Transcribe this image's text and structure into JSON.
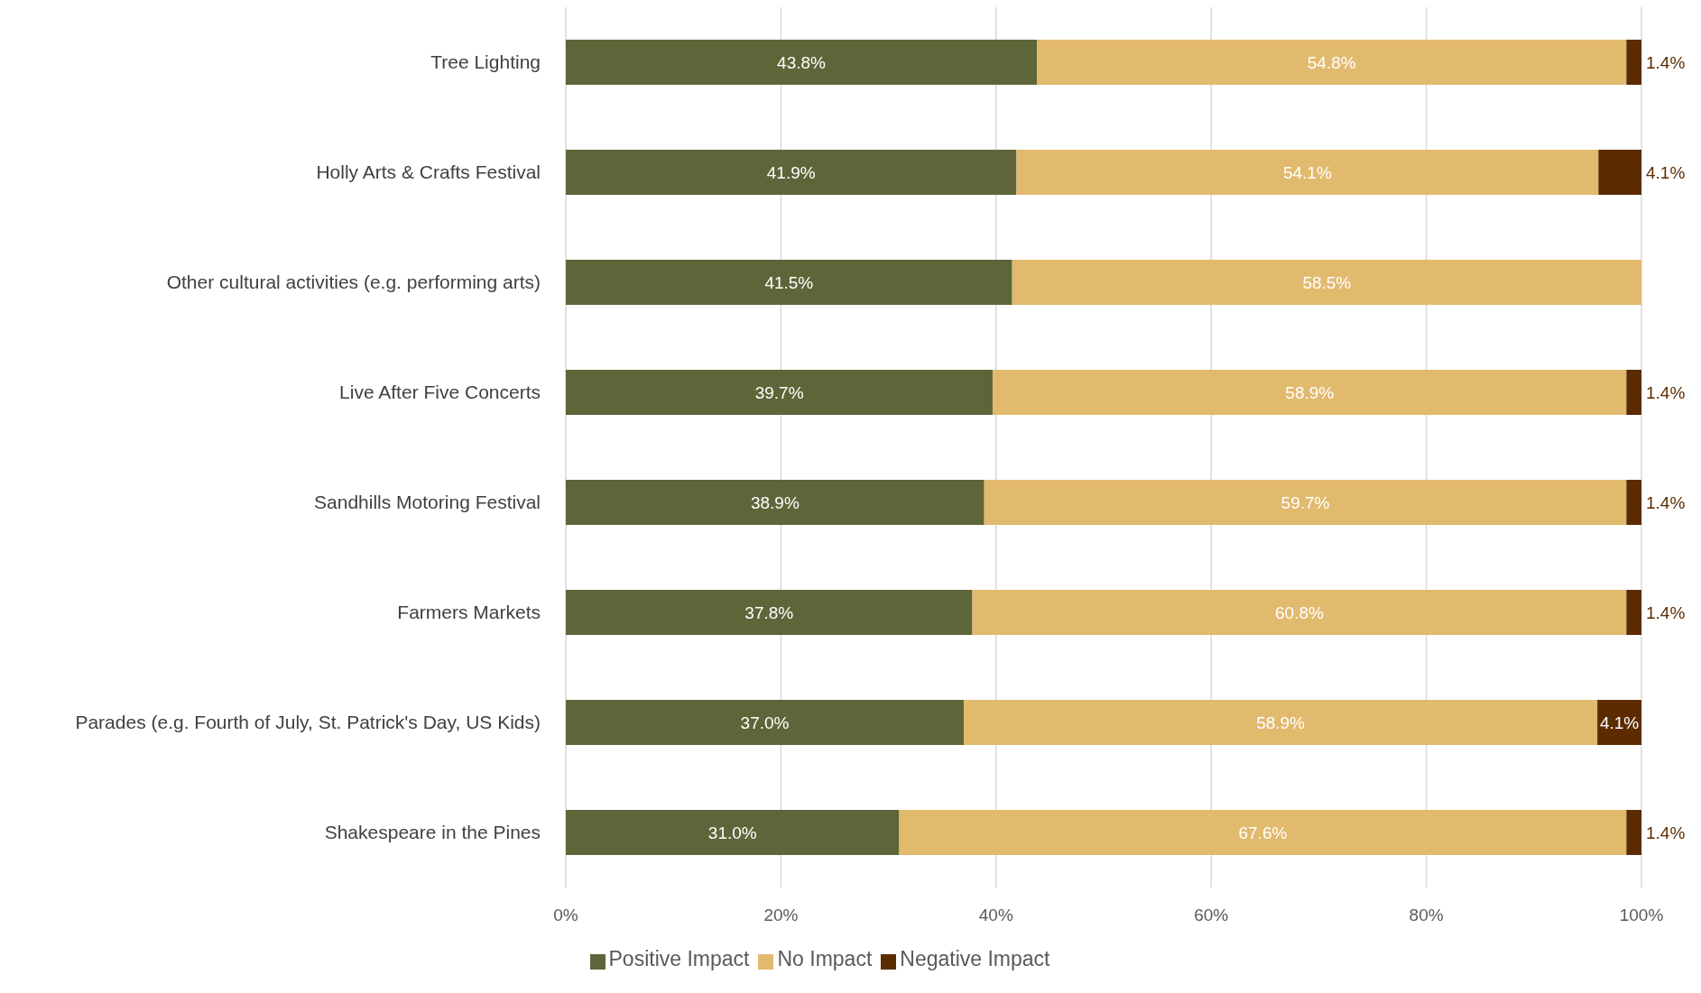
{
  "chart_data": {
    "type": "bar",
    "orientation": "horizontal",
    "stacked": true,
    "categories": [
      "Tree Lighting",
      "Holly Arts & Crafts Festival",
      "Other cultural activities (e.g. performing arts)",
      "Live After Five Concerts",
      "Sandhills Motoring Festival",
      "Farmers Markets",
      "Parades (e.g. Fourth of July, St. Patrick's Day, US Kids)",
      "Shakespeare in the Pines"
    ],
    "series": [
      {
        "name": "Positive Impact",
        "color": "#5e6639",
        "values": [
          43.8,
          41.9,
          41.5,
          39.7,
          38.9,
          37.8,
          37.0,
          31.0
        ],
        "value_labels": [
          "43.8%",
          "41.9%",
          "41.5%",
          "39.7%",
          "38.9%",
          "37.8%",
          "37.0%",
          "31.0%"
        ]
      },
      {
        "name": "No Impact",
        "color": "#e2ba6e",
        "values": [
          54.8,
          54.1,
          58.5,
          58.9,
          59.7,
          60.8,
          58.9,
          67.6
        ],
        "value_labels": [
          "54.8%",
          "54.1%",
          "58.5%",
          "58.9%",
          "59.7%",
          "60.8%",
          "58.9%",
          "67.6%"
        ]
      },
      {
        "name": "Negative Impact",
        "color": "#5c2c00",
        "values": [
          1.4,
          4.1,
          null,
          1.4,
          1.4,
          1.4,
          4.1,
          1.4
        ],
        "value_labels": [
          "1.4%",
          "4.1%",
          null,
          "1.4%",
          "1.4%",
          "1.4%",
          "4.1%",
          "1.4%"
        ]
      }
    ],
    "xlim": [
      0,
      100
    ],
    "xticks": [
      {
        "value": 0,
        "label": "0%"
      },
      {
        "value": 20,
        "label": "20%"
      },
      {
        "value": 40,
        "label": "40%"
      },
      {
        "value": 60,
        "label": "60%"
      },
      {
        "value": 80,
        "label": "80%"
      },
      {
        "value": 100,
        "label": "100%"
      }
    ],
    "grid": "x",
    "legend": "bottom"
  }
}
